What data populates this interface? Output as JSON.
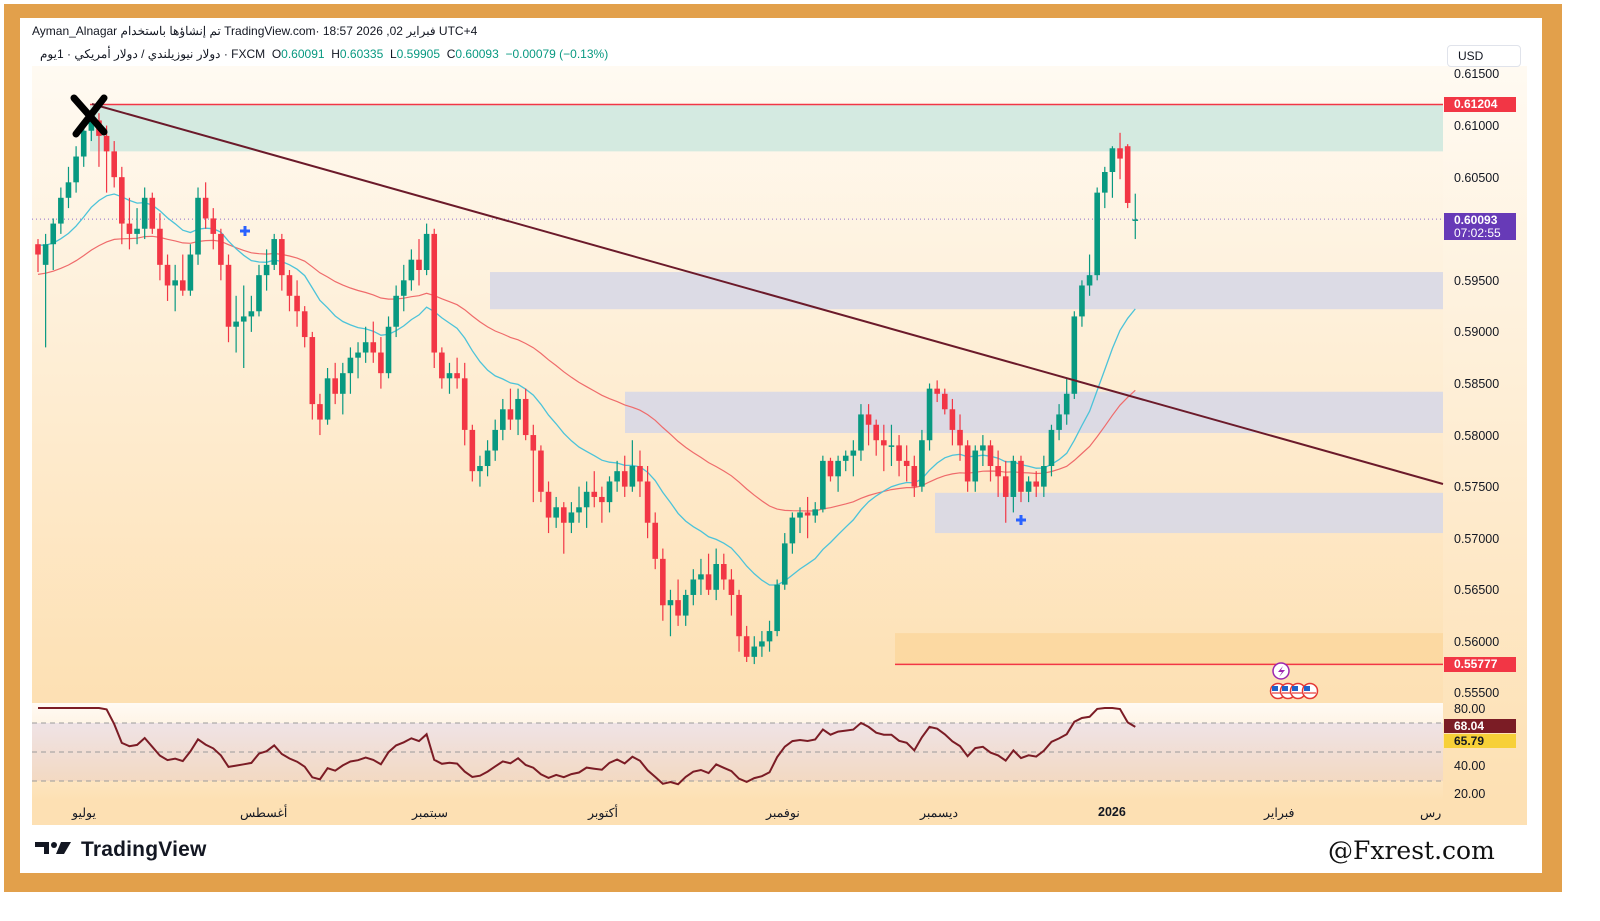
{
  "header": {
    "author": "Ayman_Alnagar",
    "published_with": "تم إنشاؤها باستخدام TradingView.com",
    "datetime": "فبراير 02, 2026 18:57 UTC+4",
    "symbol_line": "دولار نيوزيلندي / دولار أمريكي · 1يوم · FXCM",
    "open_label": "O",
    "open": "0.60091",
    "high_label": "H",
    "high": "0.60335",
    "low_label": "L",
    "low": "0.59905",
    "close_label": "C",
    "close": "0.60093",
    "change": "−0.00079 (−0.13%)"
  },
  "price_axis": {
    "currency": "USD",
    "ticks": [
      "0.61500",
      "0.61000",
      "0.60500",
      "0.60000",
      "0.59500",
      "0.59000",
      "0.58500",
      "0.58000",
      "0.57500",
      "0.57000",
      "0.56500",
      "0.56000",
      "0.55500"
    ],
    "resistance_label": "0.61204",
    "current_price": "0.60093",
    "countdown": "07:02:55",
    "support_label": "0.55777"
  },
  "rsi_axis": {
    "ticks": [
      "80.00",
      "40.00",
      "20.00"
    ],
    "rsi_value": "68.04",
    "rsi_ma_value": "65.79"
  },
  "time_axis": {
    "labels": [
      "يوليو",
      "أغسطس",
      "سبتمبر",
      "أكتوبر",
      "نوفمبر",
      "ديسمبر",
      "2026",
      "فبراير",
      "رس"
    ]
  },
  "colors": {
    "up": "#089981",
    "down": "#f23645",
    "trendline": "#6b1a2a",
    "ema_fast": "#4cc3d9",
    "ema_slow": "#ef6b6b",
    "resistance": "#f23645",
    "current_price_bg": "#673ab7",
    "rsi_line": "#7b1c25",
    "rsi_badge": "#7b1c25",
    "rsi_ma_badge": "#f7d038",
    "zone_green": "#cfe8df",
    "zone_gray": "#d8d8e6",
    "zone_orange": "#fcd79e",
    "frame": "#e2a04b"
  },
  "branding": {
    "logo_text": "TradingView",
    "watermark": "@Fxrest.com"
  },
  "chart_data": {
    "type": "candlestick",
    "title": "NZD/USD · 1D · FXCM",
    "xlabel": "",
    "ylabel": "USD",
    "ylim": [
      0.553,
      0.6165
    ],
    "resistance": 0.61204,
    "support": 0.55777,
    "zones": [
      {
        "name": "supply-zone-top",
        "from": 0.6075,
        "to": 0.61204
      },
      {
        "name": "zone-0.595",
        "from": 0.5922,
        "to": 0.5958
      },
      {
        "name": "zone-0.582",
        "from": 0.5802,
        "to": 0.5842
      },
      {
        "name": "zone-0.573",
        "from": 0.5705,
        "to": 0.5744
      },
      {
        "name": "demand-zone-bottom",
        "from": 0.55777,
        "to": 0.5608
      }
    ],
    "trendline": {
      "from": [
        0.612,
        0
      ],
      "to": [
        0.5755,
        1
      ]
    },
    "candles": [
      [
        0.5985,
        0.599,
        0.5958,
        0.5975
      ],
      [
        0.5965,
        0.5995,
        0.5885,
        0.5985
      ],
      [
        0.5985,
        0.601,
        0.596,
        0.6005
      ],
      [
        0.6005,
        0.604,
        0.5995,
        0.603
      ],
      [
        0.603,
        0.606,
        0.602,
        0.6045
      ],
      [
        0.6045,
        0.608,
        0.6035,
        0.607
      ],
      [
        0.607,
        0.61,
        0.606,
        0.6095
      ],
      [
        0.6095,
        0.6115,
        0.6085,
        0.611
      ],
      [
        0.6105,
        0.6112,
        0.606,
        0.609
      ],
      [
        0.609,
        0.61,
        0.6035,
        0.6075
      ],
      [
        0.6075,
        0.6085,
        0.604,
        0.605
      ],
      [
        0.605,
        0.606,
        0.5985,
        0.6005
      ],
      [
        0.6005,
        0.603,
        0.598,
        0.5995
      ],
      [
        0.5995,
        0.602,
        0.5985,
        0.6
      ],
      [
        0.6,
        0.604,
        0.599,
        0.603
      ],
      [
        0.603,
        0.6035,
        0.5995,
        0.6
      ],
      [
        0.6,
        0.6015,
        0.595,
        0.5965
      ],
      [
        0.5965,
        0.5975,
        0.593,
        0.5945
      ],
      [
        0.5945,
        0.5965,
        0.592,
        0.595
      ],
      [
        0.595,
        0.5975,
        0.5935,
        0.594
      ],
      [
        0.594,
        0.5985,
        0.5935,
        0.5975
      ],
      [
        0.5975,
        0.604,
        0.5965,
        0.603
      ],
      [
        0.603,
        0.6045,
        0.6,
        0.601
      ],
      [
        0.601,
        0.602,
        0.598,
        0.5995
      ],
      [
        0.5995,
        0.6,
        0.595,
        0.5965
      ],
      [
        0.5965,
        0.5975,
        0.589,
        0.5905
      ],
      [
        0.5905,
        0.5935,
        0.588,
        0.591
      ],
      [
        0.591,
        0.5945,
        0.5865,
        0.5915
      ],
      [
        0.5915,
        0.5935,
        0.59,
        0.592
      ],
      [
        0.592,
        0.5965,
        0.5915,
        0.5955
      ],
      [
        0.5955,
        0.598,
        0.594,
        0.5965
      ],
      [
        0.5965,
        0.5995,
        0.596,
        0.599
      ],
      [
        0.599,
        0.5995,
        0.594,
        0.5955
      ],
      [
        0.5955,
        0.596,
        0.592,
        0.5935
      ],
      [
        0.5935,
        0.595,
        0.5905,
        0.592
      ],
      [
        0.592,
        0.5925,
        0.5885,
        0.5895
      ],
      [
        0.5895,
        0.59,
        0.5815,
        0.583
      ],
      [
        0.583,
        0.584,
        0.58,
        0.5815
      ],
      [
        0.5815,
        0.5865,
        0.581,
        0.5855
      ],
      [
        0.5855,
        0.587,
        0.583,
        0.584
      ],
      [
        0.584,
        0.587,
        0.582,
        0.586
      ],
      [
        0.586,
        0.5885,
        0.584,
        0.5875
      ],
      [
        0.5875,
        0.589,
        0.5855,
        0.588
      ],
      [
        0.588,
        0.5905,
        0.587,
        0.589
      ],
      [
        0.589,
        0.591,
        0.587,
        0.588
      ],
      [
        0.588,
        0.5895,
        0.5845,
        0.586
      ],
      [
        0.586,
        0.5915,
        0.5855,
        0.5905
      ],
      [
        0.5905,
        0.5945,
        0.5895,
        0.5935
      ],
      [
        0.5935,
        0.5965,
        0.592,
        0.595
      ],
      [
        0.595,
        0.598,
        0.594,
        0.597
      ],
      [
        0.597,
        0.599,
        0.5945,
        0.596
      ],
      [
        0.596,
        0.6005,
        0.5955,
        0.5995
      ],
      [
        0.5995,
        0.6,
        0.5865,
        0.588
      ],
      [
        0.588,
        0.5885,
        0.5845,
        0.5855
      ],
      [
        0.5855,
        0.587,
        0.584,
        0.586
      ],
      [
        0.586,
        0.5875,
        0.5845,
        0.5855
      ],
      [
        0.5855,
        0.587,
        0.579,
        0.5805
      ],
      [
        0.5805,
        0.581,
        0.5755,
        0.5765
      ],
      [
        0.5765,
        0.578,
        0.575,
        0.577
      ],
      [
        0.577,
        0.5795,
        0.576,
        0.5785
      ],
      [
        0.5785,
        0.5815,
        0.5775,
        0.5805
      ],
      [
        0.5805,
        0.5835,
        0.5795,
        0.5825
      ],
      [
        0.5825,
        0.5845,
        0.5805,
        0.5815
      ],
      [
        0.5815,
        0.5845,
        0.58,
        0.5835
      ],
      [
        0.5835,
        0.5845,
        0.5795,
        0.58
      ],
      [
        0.58,
        0.581,
        0.5735,
        0.5785
      ],
      [
        0.5785,
        0.579,
        0.5735,
        0.5745
      ],
      [
        0.5745,
        0.5755,
        0.5705,
        0.572
      ],
      [
        0.572,
        0.574,
        0.571,
        0.573
      ],
      [
        0.573,
        0.5735,
        0.5685,
        0.5715
      ],
      [
        0.5715,
        0.5735,
        0.5705,
        0.5725
      ],
      [
        0.5725,
        0.575,
        0.5715,
        0.573
      ],
      [
        0.573,
        0.5755,
        0.571,
        0.5745
      ],
      [
        0.5745,
        0.5765,
        0.573,
        0.574
      ],
      [
        0.574,
        0.575,
        0.5715,
        0.5735
      ],
      [
        0.5735,
        0.576,
        0.5725,
        0.5755
      ],
      [
        0.5755,
        0.5775,
        0.5745,
        0.5765
      ],
      [
        0.5765,
        0.578,
        0.574,
        0.575
      ],
      [
        0.575,
        0.5795,
        0.5745,
        0.577
      ],
      [
        0.577,
        0.5785,
        0.574,
        0.5755
      ],
      [
        0.5755,
        0.577,
        0.57,
        0.5715
      ],
      [
        0.5715,
        0.5725,
        0.567,
        0.568
      ],
      [
        0.568,
        0.569,
        0.562,
        0.5635
      ],
      [
        0.5635,
        0.565,
        0.5605,
        0.564
      ],
      [
        0.564,
        0.566,
        0.5615,
        0.5625
      ],
      [
        0.5625,
        0.565,
        0.5615,
        0.5645
      ],
      [
        0.5645,
        0.567,
        0.5635,
        0.566
      ],
      [
        0.566,
        0.568,
        0.5645,
        0.5665
      ],
      [
        0.5665,
        0.5685,
        0.5645,
        0.565
      ],
      [
        0.565,
        0.569,
        0.564,
        0.5675
      ],
      [
        0.5675,
        0.5685,
        0.565,
        0.566
      ],
      [
        0.566,
        0.567,
        0.5625,
        0.5645
      ],
      [
        0.5645,
        0.565,
        0.559,
        0.5605
      ],
      [
        0.5605,
        0.5615,
        0.558,
        0.5585
      ],
      [
        0.5585,
        0.5605,
        0.5578,
        0.5595
      ],
      [
        0.5595,
        0.561,
        0.5585,
        0.56
      ],
      [
        0.56,
        0.562,
        0.559,
        0.561
      ],
      [
        0.561,
        0.566,
        0.5605,
        0.5655
      ],
      [
        0.5655,
        0.5705,
        0.565,
        0.5695
      ],
      [
        0.5695,
        0.5725,
        0.5685,
        0.572
      ],
      [
        0.572,
        0.573,
        0.5705,
        0.5725
      ],
      [
        0.5725,
        0.574,
        0.57,
        0.5722
      ],
      [
        0.5722,
        0.5735,
        0.5715,
        0.5728
      ],
      [
        0.5728,
        0.578,
        0.5725,
        0.5775
      ],
      [
        0.5775,
        0.5778,
        0.5755,
        0.576
      ],
      [
        0.576,
        0.578,
        0.5745,
        0.5775
      ],
      [
        0.5775,
        0.5785,
        0.5765,
        0.578
      ],
      [
        0.578,
        0.5795,
        0.576,
        0.5785
      ],
      [
        0.5785,
        0.583,
        0.5775,
        0.582
      ],
      [
        0.582,
        0.583,
        0.579,
        0.581
      ],
      [
        0.581,
        0.5815,
        0.578,
        0.5795
      ],
      [
        0.5795,
        0.581,
        0.5765,
        0.579
      ],
      [
        0.579,
        0.581,
        0.577,
        0.579
      ],
      [
        0.579,
        0.58,
        0.576,
        0.5775
      ],
      [
        0.5775,
        0.579,
        0.5755,
        0.577
      ],
      [
        0.577,
        0.578,
        0.574,
        0.575
      ],
      [
        0.575,
        0.5805,
        0.5745,
        0.5795
      ],
      [
        0.5795,
        0.585,
        0.5785,
        0.5845
      ],
      [
        0.5845,
        0.5853,
        0.5832,
        0.584
      ],
      [
        0.584,
        0.5845,
        0.582,
        0.5825
      ],
      [
        0.5825,
        0.5835,
        0.579,
        0.5805
      ],
      [
        0.5805,
        0.582,
        0.5775,
        0.579
      ],
      [
        0.579,
        0.5795,
        0.5745,
        0.5755
      ],
      [
        0.5755,
        0.579,
        0.5745,
        0.5785
      ],
      [
        0.5785,
        0.58,
        0.577,
        0.579
      ],
      [
        0.579,
        0.5795,
        0.5755,
        0.577
      ],
      [
        0.577,
        0.5785,
        0.574,
        0.576
      ],
      [
        0.576,
        0.5775,
        0.5715,
        0.574
      ],
      [
        0.574,
        0.578,
        0.5725,
        0.5775
      ],
      [
        0.5775,
        0.578,
        0.5735,
        0.5745
      ],
      [
        0.5745,
        0.576,
        0.5735,
        0.5755
      ],
      [
        0.5755,
        0.5765,
        0.574,
        0.575
      ],
      [
        0.575,
        0.578,
        0.574,
        0.577
      ],
      [
        0.577,
        0.581,
        0.576,
        0.5805
      ],
      [
        0.5805,
        0.583,
        0.5795,
        0.582
      ],
      [
        0.582,
        0.5855,
        0.581,
        0.584
      ],
      [
        0.584,
        0.592,
        0.5835,
        0.5915
      ],
      [
        0.5915,
        0.595,
        0.5905,
        0.5945
      ],
      [
        0.5945,
        0.5975,
        0.5935,
        0.5955
      ],
      [
        0.5955,
        0.604,
        0.595,
        0.6035
      ],
      [
        0.6035,
        0.606,
        0.602,
        0.6055
      ],
      [
        0.6055,
        0.608,
        0.603,
        0.6078
      ],
      [
        0.6078,
        0.6093,
        0.6048,
        0.6068
      ],
      [
        0.608,
        0.6082,
        0.602,
        0.6025
      ],
      [
        0.6009,
        0.6034,
        0.599,
        0.6009
      ]
    ],
    "rsi": {
      "name": "RSI",
      "range": [
        0,
        100
      ],
      "levels": [
        70,
        50,
        30
      ],
      "value": 68.04,
      "ma": 65.79
    }
  }
}
